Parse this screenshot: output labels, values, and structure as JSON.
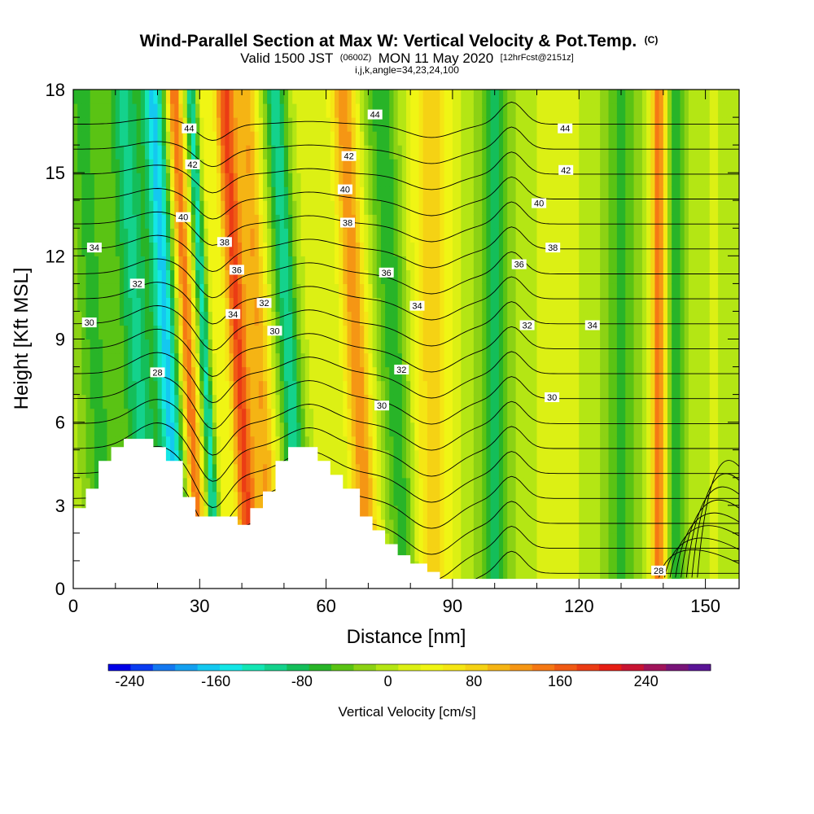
{
  "title": {
    "main": "Wind-Parallel Section at Max W: Vertical Velocity & Pot.Temp.",
    "main_suffix": "(C)",
    "valid_a": "Valid 1500 JST",
    "valid_b": "(0600Z)",
    "valid_c": "MON 11 May 2020",
    "valid_d": "[12hrFcst@2151z]",
    "indices": "i,j,k,angle=34,23,24,100"
  },
  "chart_data": {
    "type": "heatmap",
    "xlabel": "Distance [nm]",
    "ylabel": "Height [Kft MSL]",
    "xlim": [
      0,
      158
    ],
    "ylim": [
      0,
      18
    ],
    "x_ticks": [
      "0",
      "30",
      "60",
      "90",
      "120",
      "150"
    ],
    "x_tick_values": [
      0,
      30,
      60,
      90,
      120,
      150
    ],
    "y_ticks": [
      "0",
      "3",
      "6",
      "9",
      "12",
      "15",
      "18"
    ],
    "y_tick_values": [
      0,
      3,
      6,
      9,
      12,
      15,
      18
    ],
    "colorbar": {
      "label": "Vertical Velocity [cm/s]",
      "labels": [
        "-240",
        "-160",
        "-80",
        "0",
        "80",
        "160",
        "240"
      ],
      "label_values": [
        -240,
        -160,
        -80,
        0,
        80,
        160,
        240
      ],
      "range": [
        -260,
        300
      ],
      "colors": [
        "#0000e6",
        "#0a3cf0",
        "#1478f0",
        "#14a0f0",
        "#14c8f0",
        "#14e6e6",
        "#14e6b4",
        "#14d28c",
        "#14be5a",
        "#28b428",
        "#5ac314",
        "#8cd214",
        "#b4e614",
        "#dcf014",
        "#f0f514",
        "#f5e614",
        "#f5d214",
        "#f5b414",
        "#f59614",
        "#f57814",
        "#f05a14",
        "#eb3c14",
        "#e61e14",
        "#c81432",
        "#a0145a",
        "#781478",
        "#5a1496"
      ]
    },
    "velocity_bands": [
      {
        "x": 5,
        "w": 4,
        "v": -60
      },
      {
        "x": 15,
        "w": 4,
        "v": -100
      },
      {
        "x": 22,
        "w": 2.5,
        "v": -160
      },
      {
        "x": 27,
        "w": 1.8,
        "v": 150
      },
      {
        "x": 31,
        "w": 1.2,
        "v": -120
      },
      {
        "x": 34,
        "w": 1.5,
        "v": 40
      },
      {
        "x": 39,
        "w": 2.5,
        "v": 180
      },
      {
        "x": 44,
        "w": 2.5,
        "v": 110
      },
      {
        "x": 51,
        "w": 2.5,
        "v": -110
      },
      {
        "x": 58,
        "w": 4,
        "v": 20
      },
      {
        "x": 67,
        "w": 3,
        "v": 130
      },
      {
        "x": 76,
        "w": 3.5,
        "v": -70
      },
      {
        "x": 85,
        "w": 5,
        "v": 80
      },
      {
        "x": 100,
        "w": 3.5,
        "v": -80
      },
      {
        "x": 115,
        "w": 6,
        "v": 20
      },
      {
        "x": 130,
        "w": 4,
        "v": -60
      },
      {
        "x": 139,
        "w": 1.8,
        "v": 150
      },
      {
        "x": 143,
        "w": 2.2,
        "v": -60
      },
      {
        "x": 152,
        "w": 4,
        "v": 10
      }
    ],
    "terrain": [
      [
        0,
        2.9
      ],
      [
        3,
        2.9
      ],
      [
        3,
        3.6
      ],
      [
        6,
        3.6
      ],
      [
        6,
        4.6
      ],
      [
        9,
        4.6
      ],
      [
        9,
        5.1
      ],
      [
        12,
        5.1
      ],
      [
        12,
        5.4
      ],
      [
        19,
        5.4
      ],
      [
        19,
        5.1
      ],
      [
        22,
        5.1
      ],
      [
        22,
        4.6
      ],
      [
        26,
        4.6
      ],
      [
        26,
        3.3
      ],
      [
        29,
        3.3
      ],
      [
        29,
        2.6
      ],
      [
        39,
        2.6
      ],
      [
        39,
        2.3
      ],
      [
        42,
        2.3
      ],
      [
        42,
        2.9
      ],
      [
        45,
        2.9
      ],
      [
        45,
        3.5
      ],
      [
        48,
        3.5
      ],
      [
        48,
        4.6
      ],
      [
        51,
        4.6
      ],
      [
        51,
        5.1
      ],
      [
        58,
        5.1
      ],
      [
        58,
        4.6
      ],
      [
        61,
        4.6
      ],
      [
        61,
        4.1
      ],
      [
        64,
        4.1
      ],
      [
        64,
        3.6
      ],
      [
        68,
        3.6
      ],
      [
        68,
        2.6
      ],
      [
        71,
        2.6
      ],
      [
        71,
        2.1
      ],
      [
        74,
        2.1
      ],
      [
        74,
        1.6
      ],
      [
        77,
        1.6
      ],
      [
        77,
        1.2
      ],
      [
        80,
        1.2
      ],
      [
        80,
        0.9
      ],
      [
        84,
        0.9
      ],
      [
        84,
        0.6
      ],
      [
        87,
        0.6
      ],
      [
        87,
        0.35
      ],
      [
        158,
        0.35
      ]
    ],
    "theta_levels": [
      28,
      29,
      30,
      31,
      32,
      33,
      34,
      35,
      36,
      37,
      38,
      39,
      40,
      41,
      42,
      43,
      44,
      45,
      46
    ],
    "contour_labels": [
      {
        "text": "44",
        "x": 27.5,
        "y": 16.6
      },
      {
        "text": "42",
        "x": 28.3,
        "y": 15.3
      },
      {
        "text": "40",
        "x": 26.1,
        "y": 13.4
      },
      {
        "text": "38",
        "x": 35.9,
        "y": 12.5
      },
      {
        "text": "36",
        "x": 38.8,
        "y": 11.5
      },
      {
        "text": "34",
        "x": 37.9,
        "y": 9.9
      },
      {
        "text": "32",
        "x": 45.3,
        "y": 10.3
      },
      {
        "text": "30",
        "x": 47.8,
        "y": 9.3
      },
      {
        "text": "28",
        "x": 20.0,
        "y": 7.8
      },
      {
        "text": "34",
        "x": 5.0,
        "y": 12.3
      },
      {
        "text": "32",
        "x": 15.2,
        "y": 11.0
      },
      {
        "text": "30",
        "x": 3.8,
        "y": 9.6
      },
      {
        "text": "44",
        "x": 71.6,
        "y": 17.1
      },
      {
        "text": "42",
        "x": 65.4,
        "y": 15.6
      },
      {
        "text": "40",
        "x": 64.5,
        "y": 14.4
      },
      {
        "text": "38",
        "x": 65.1,
        "y": 13.2
      },
      {
        "text": "36",
        "x": 74.3,
        "y": 11.4
      },
      {
        "text": "34",
        "x": 81.6,
        "y": 10.2
      },
      {
        "text": "32",
        "x": 77.9,
        "y": 7.9
      },
      {
        "text": "30",
        "x": 73.2,
        "y": 6.6
      },
      {
        "text": "44",
        "x": 116.7,
        "y": 16.6
      },
      {
        "text": "42",
        "x": 116.9,
        "y": 15.1
      },
      {
        "text": "40",
        "x": 110.5,
        "y": 13.9
      },
      {
        "text": "38",
        "x": 113.8,
        "y": 12.3
      },
      {
        "text": "36",
        "x": 105.8,
        "y": 11.7
      },
      {
        "text": "32",
        "x": 107.7,
        "y": 9.5
      },
      {
        "text": "34",
        "x": 123.2,
        "y": 9.5
      },
      {
        "text": "30",
        "x": 113.6,
        "y": 6.9
      },
      {
        "text": "28",
        "x": 138.9,
        "y": 0.65
      }
    ]
  }
}
